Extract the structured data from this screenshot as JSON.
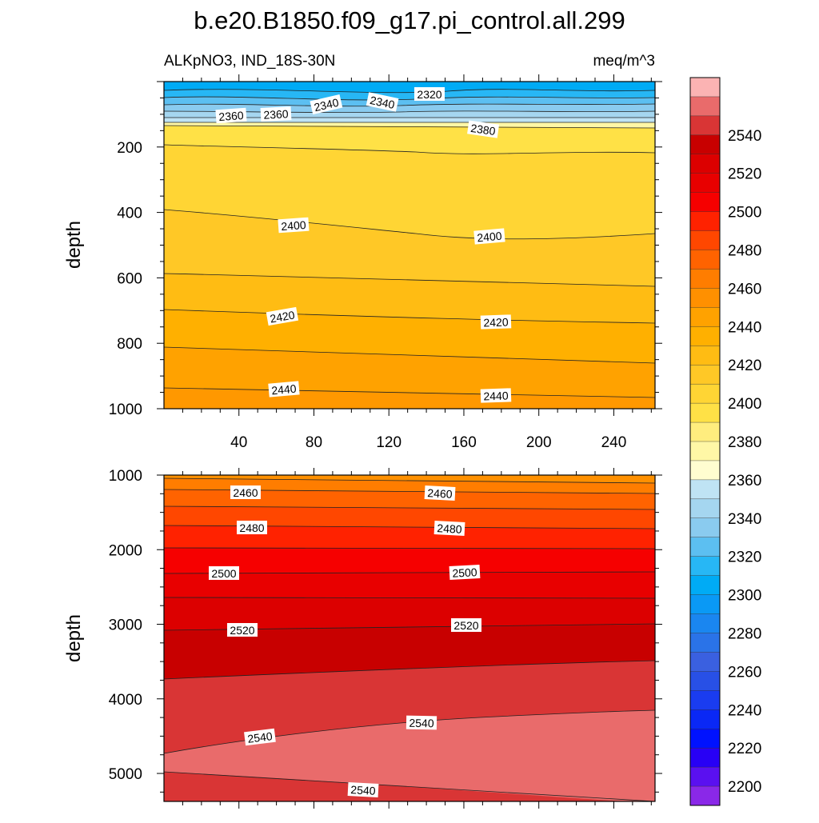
{
  "chart_data": {
    "type": "contour",
    "title": "b.e20.B1850.f09_g17.pi_control.all.299",
    "left_string": "ALKpNO3, IND_18S-30N",
    "right_string": "meq/m^3",
    "ylabel": "depth",
    "x_ticks": [
      "40",
      "80",
      "120",
      "160",
      "200",
      "240"
    ],
    "top_panel": {
      "y_ticks": [
        "200",
        "400",
        "600",
        "800",
        "1000"
      ],
      "ylim": [
        0,
        1000
      ],
      "contour_labels": [
        "2320",
        "2340",
        "2340",
        "2360",
        "2360",
        "2380",
        "2400",
        "2400",
        "2420",
        "2420",
        "2440",
        "2440"
      ]
    },
    "bottom_panel": {
      "y_ticks": [
        "1000",
        "2000",
        "3000",
        "4000",
        "5000"
      ],
      "ylim": [
        1000,
        5375
      ],
      "contour_labels": [
        "2460",
        "2460",
        "2480",
        "2480",
        "2500",
        "2500",
        "2520",
        "2520",
        "2540",
        "2540",
        "2540"
      ]
    },
    "colorbar": {
      "labels": [
        "2540",
        "2520",
        "2500",
        "2480",
        "2460",
        "2440",
        "2420",
        "2400",
        "2380",
        "2360",
        "2340",
        "2320",
        "2300",
        "2280",
        "2260",
        "2240",
        "2220",
        "2200"
      ],
      "colors": [
        "#fbb3b3",
        "#e96b6b",
        "#d93535",
        "#c80000",
        "#dc0000",
        "#e80000",
        "#f60000",
        "#ff2200",
        "#ff4700",
        "#ff6300",
        "#ff7d00",
        "#ff9000",
        "#ffa200",
        "#ffb000",
        "#ffbc13",
        "#ffc826",
        "#ffd534",
        "#ffe146",
        "#ffed7e",
        "#fff7a6",
        "#fffdd0",
        "#bfe3f4",
        "#a5d6f0",
        "#8acbef",
        "#5cbff1",
        "#27b7f5",
        "#00abf5",
        "#0a99f5",
        "#1a86f0",
        "#2a73e8",
        "#3a60e0",
        "#2850e6",
        "#1a3cf0",
        "#0a28f5",
        "#0012ff",
        "#2800f5",
        "#5a10f0",
        "#8a28e8"
      ]
    }
  }
}
